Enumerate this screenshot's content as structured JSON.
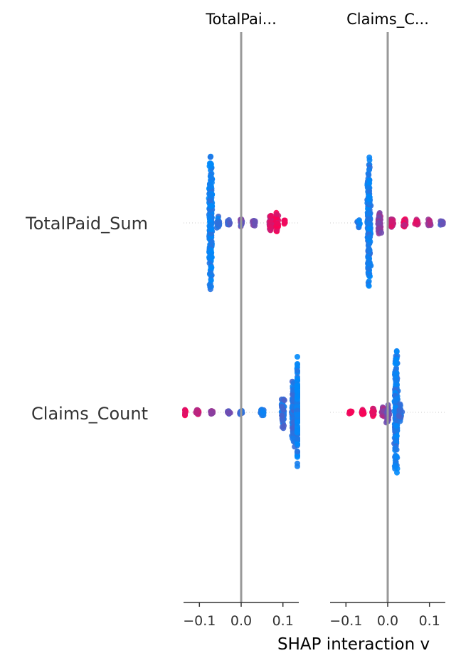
{
  "chart_data": {
    "type": "scatter",
    "subtype": "beeswarm",
    "xlabel": "SHAP interaction v",
    "row_labels": [
      "TotalPaid_Sum",
      "Claims_Count"
    ],
    "panels": [
      {
        "title": "TotalPai...",
        "xlim": [
          -0.138,
          0.138
        ],
        "ticks": [
          -0.1,
          0.0,
          0.1
        ],
        "tick_labels": [
          "−0.1",
          "0.0",
          "0.1"
        ],
        "rows": [
          {
            "feature": "TotalPaid_Sum",
            "shap_profile": [
              {
                "x": -0.073,
                "spread": 97,
                "color": 0.05,
                "weight": 260
              },
              {
                "x": -0.055,
                "spread": 12,
                "color": 0.15,
                "weight": 24
              },
              {
                "x": -0.03,
                "spread": 6,
                "color": 0.3,
                "weight": 16
              },
              {
                "x": 0.0,
                "spread": 6,
                "color": 0.4,
                "weight": 16
              },
              {
                "x": 0.03,
                "spread": 5,
                "color": 0.45,
                "weight": 14
              },
              {
                "x": 0.07,
                "spread": 13,
                "color": 0.82,
                "weight": 40
              },
              {
                "x": 0.085,
                "spread": 15,
                "color": 0.92,
                "weight": 34
              },
              {
                "x": 0.105,
                "spread": 5,
                "color": 0.95,
                "weight": 8
              }
            ]
          },
          {
            "feature": "Claims_Count",
            "shap_profile": [
              {
                "x": -0.135,
                "spread": 6,
                "color": 0.95,
                "weight": 10
              },
              {
                "x": -0.105,
                "spread": 4,
                "color": 0.8,
                "weight": 18
              },
              {
                "x": -0.07,
                "spread": 3,
                "color": 0.6,
                "weight": 18
              },
              {
                "x": -0.03,
                "spread": 3,
                "color": 0.35,
                "weight": 14
              },
              {
                "x": 0.0,
                "spread": 4,
                "color": 0.25,
                "weight": 14
              },
              {
                "x": 0.05,
                "spread": 6,
                "color": 0.15,
                "weight": 20
              },
              {
                "x": 0.1,
                "spread": 25,
                "color": 0.2,
                "weight": 60
              },
              {
                "x": 0.125,
                "spread": 50,
                "color": 0.15,
                "weight": 110
              },
              {
                "x": 0.137,
                "spread": 85,
                "color": 0.05,
                "weight": 140
              }
            ]
          }
        ]
      },
      {
        "title": "Claims_C...",
        "xlim": [
          -0.138,
          0.138
        ],
        "ticks": [
          -0.1,
          0.0,
          0.1
        ],
        "tick_labels": [
          "−0.1",
          "0.0",
          "0.1"
        ],
        "rows": [
          {
            "feature": "TotalPaid_Sum",
            "shap_profile": [
              {
                "x": -0.07,
                "spread": 8,
                "color": 0.1,
                "weight": 14
              },
              {
                "x": -0.045,
                "spread": 97,
                "color": 0.1,
                "weight": 250
              },
              {
                "x": -0.02,
                "spread": 18,
                "color": 0.55,
                "weight": 50
              },
              {
                "x": 0.01,
                "spread": 8,
                "color": 0.75,
                "weight": 30
              },
              {
                "x": 0.04,
                "spread": 6,
                "color": 0.85,
                "weight": 24
              },
              {
                "x": 0.07,
                "spread": 5,
                "color": 0.8,
                "weight": 18
              },
              {
                "x": 0.1,
                "spread": 5,
                "color": 0.6,
                "weight": 16
              },
              {
                "x": 0.13,
                "spread": 4,
                "color": 0.4,
                "weight": 10
              }
            ]
          },
          {
            "feature": "Claims_Count",
            "shap_profile": [
              {
                "x": -0.09,
                "spread": 3,
                "color": 0.98,
                "weight": 10
              },
              {
                "x": -0.06,
                "spread": 5,
                "color": 0.95,
                "weight": 22
              },
              {
                "x": -0.035,
                "spread": 6,
                "color": 0.9,
                "weight": 26
              },
              {
                "x": -0.01,
                "spread": 9,
                "color": 0.6,
                "weight": 30
              },
              {
                "x": 0.0,
                "spread": 16,
                "color": 0.45,
                "weight": 30
              },
              {
                "x": 0.02,
                "spread": 95,
                "color": 0.1,
                "weight": 200
              },
              {
                "x": 0.03,
                "spread": 14,
                "color": 0.2,
                "weight": 24
              }
            ]
          }
        ]
      }
    ],
    "colors": {
      "low": "#008afb",
      "high": "#ff0052",
      "zero_line": "#999999",
      "guide_line": "#cccccc",
      "axis": "#333333",
      "text": "#333333"
    },
    "grid": false,
    "legend": "none"
  }
}
